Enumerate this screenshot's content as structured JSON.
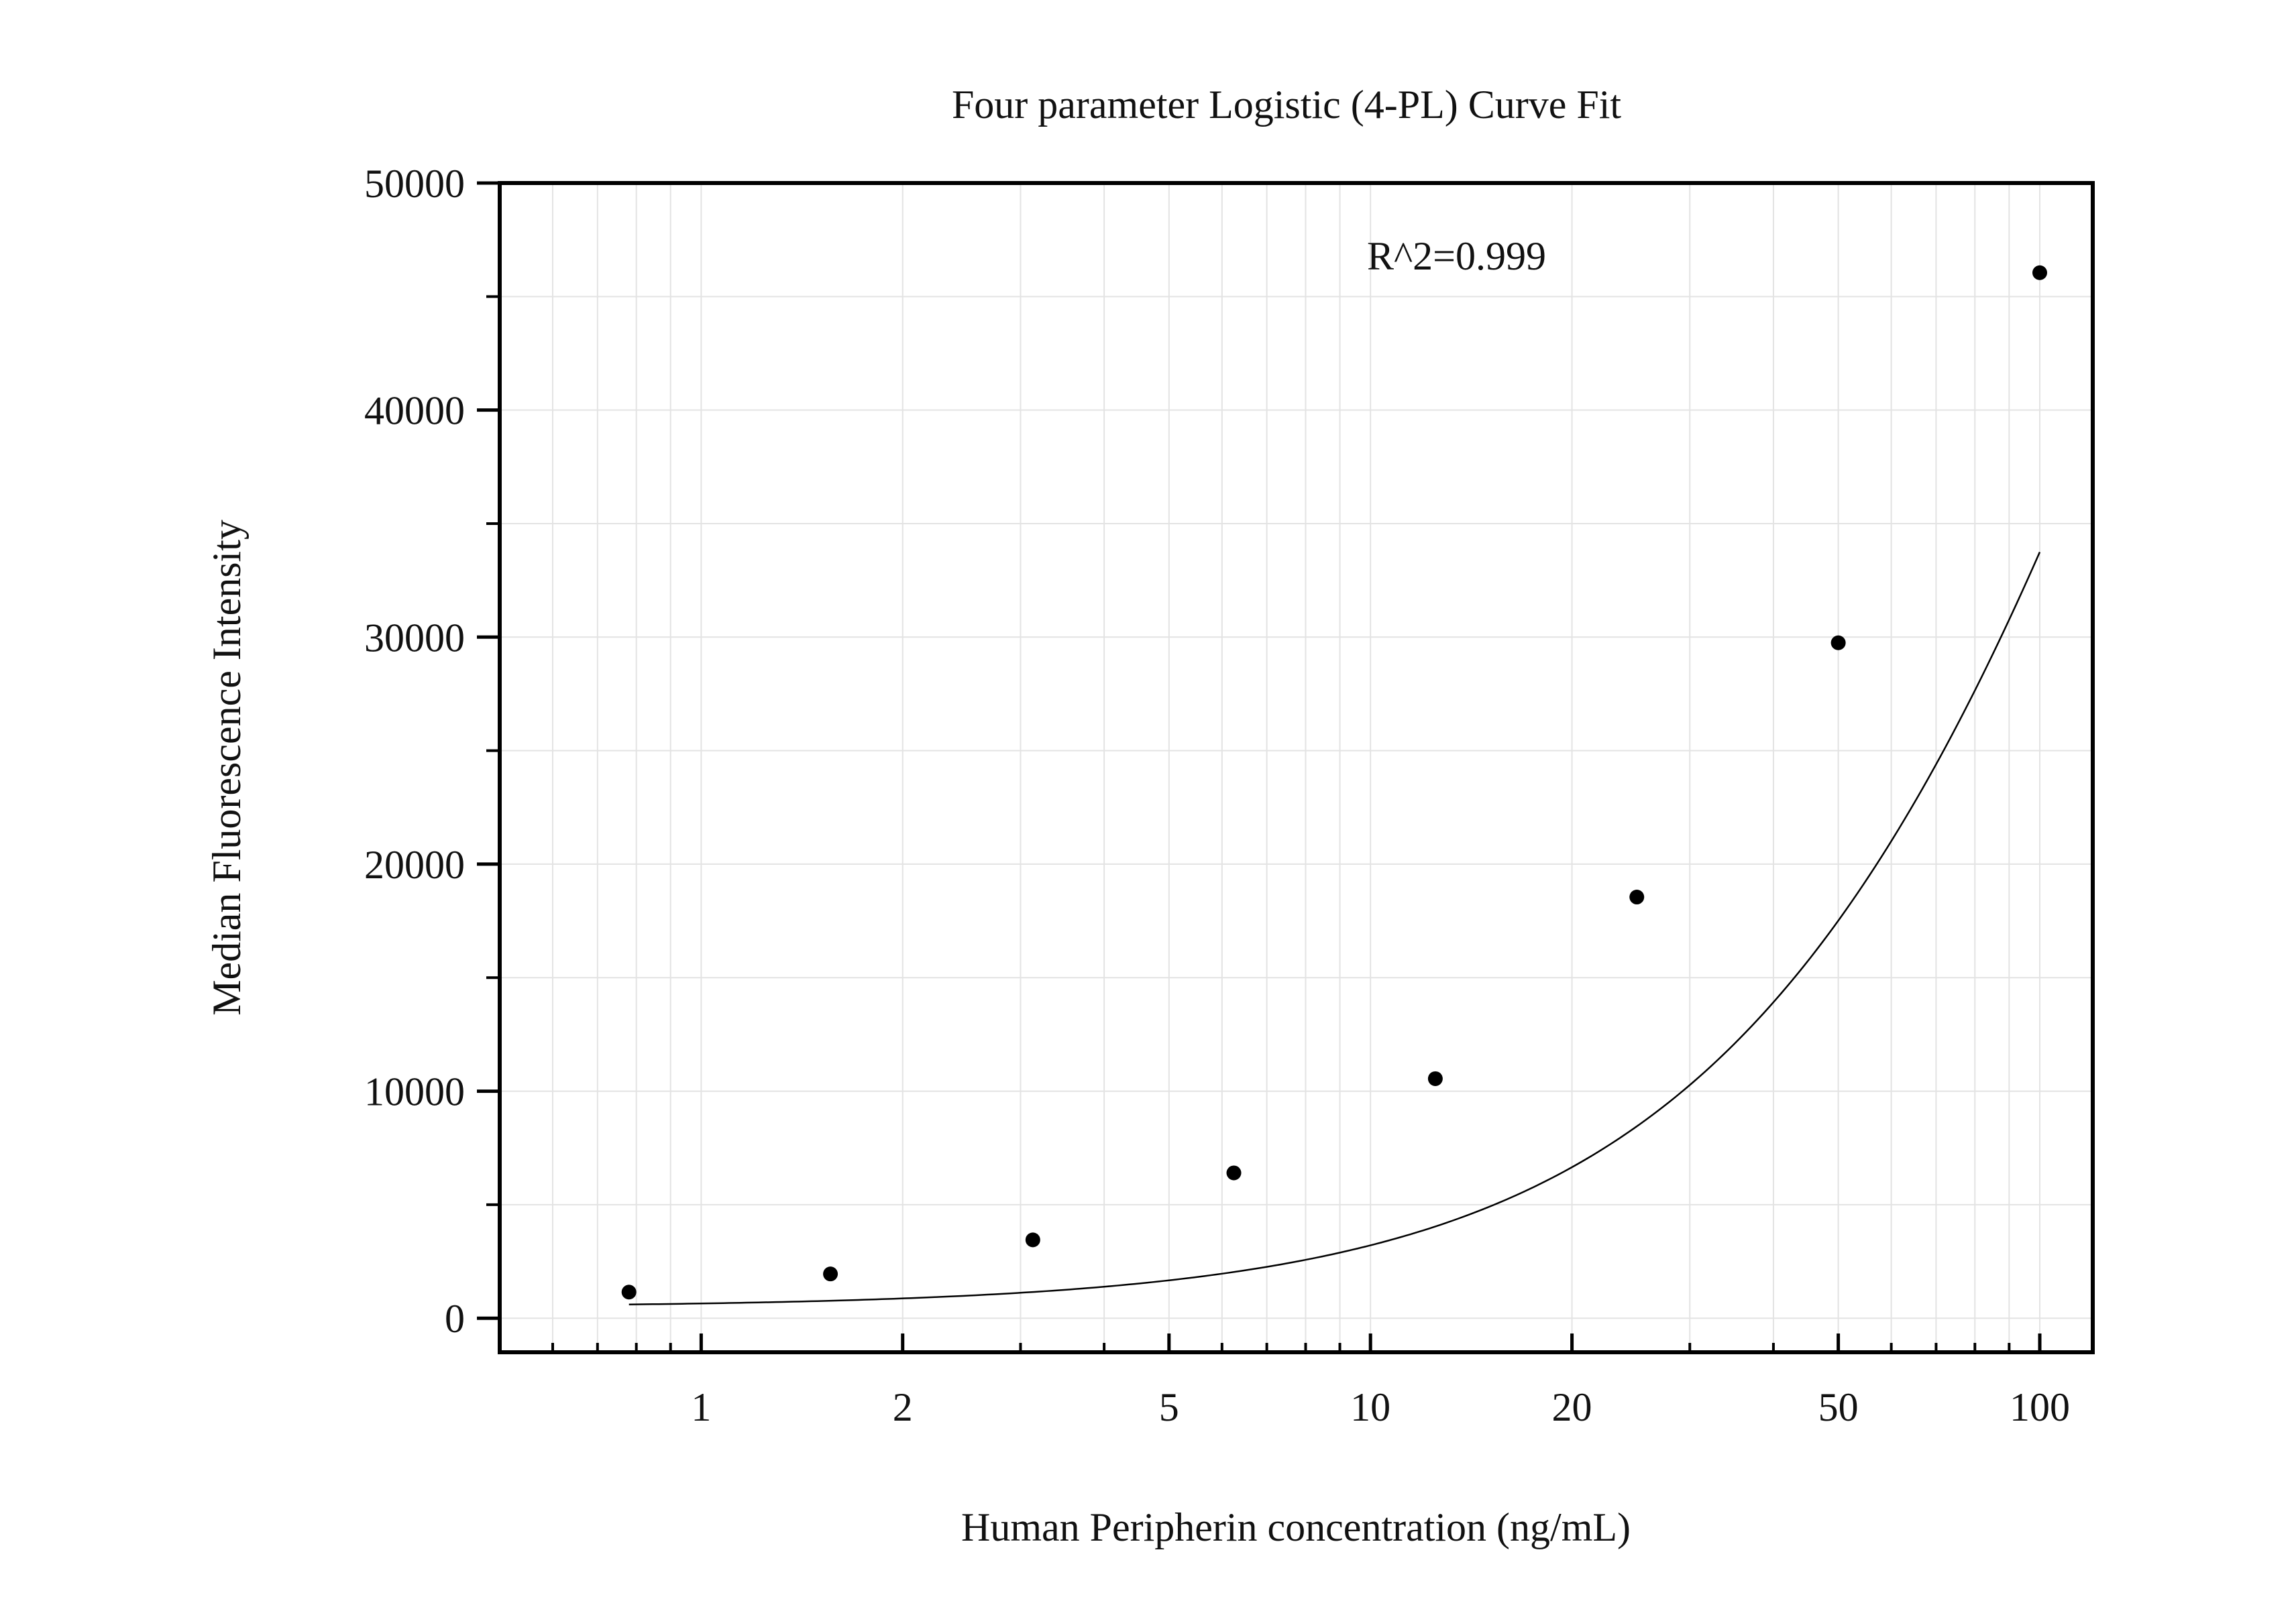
{
  "chart_data": {
    "type": "scatter",
    "title": "Four parameter Logistic (4-PL) Curve Fit",
    "xlabel": "Human Peripherin concentration (ng/mL)",
    "ylabel": "Median Fluorescence Intensity",
    "x_scale": "log",
    "xlim": [
      0.5,
      120
    ],
    "ylim": [
      -1500,
      50000
    ],
    "x_ticks": [
      1,
      2,
      5,
      10,
      20,
      50,
      100
    ],
    "x_tick_labels": [
      "1",
      "2",
      "5",
      "10",
      "20",
      "50",
      "100"
    ],
    "y_ticks": [
      0,
      10000,
      20000,
      30000,
      40000,
      50000
    ],
    "y_tick_labels": [
      "0",
      "10000",
      "20000",
      "30000",
      "40000",
      "50000"
    ],
    "grid": true,
    "annotation": "R^2=0.999",
    "series": [
      {
        "points": [
          {
            "x": 0.78,
            "y": 1150
          },
          {
            "x": 1.56,
            "y": 1950
          },
          {
            "x": 3.13,
            "y": 3450
          },
          {
            "x": 6.25,
            "y": 6400
          },
          {
            "x": 12.5,
            "y": 10550
          },
          {
            "x": 25,
            "y": 18550
          },
          {
            "x": 50,
            "y": 29750
          },
          {
            "x": 100,
            "y": 46050
          }
        ]
      }
    ],
    "fit_curve": {
      "model": "4PL",
      "A": 480,
      "B": 1.22,
      "C": 214.2,
      "D": 118000
    },
    "colors": {
      "points": "#000000",
      "curve": "#000000",
      "grid": "#e3e3e3",
      "axes": "#000000"
    }
  }
}
